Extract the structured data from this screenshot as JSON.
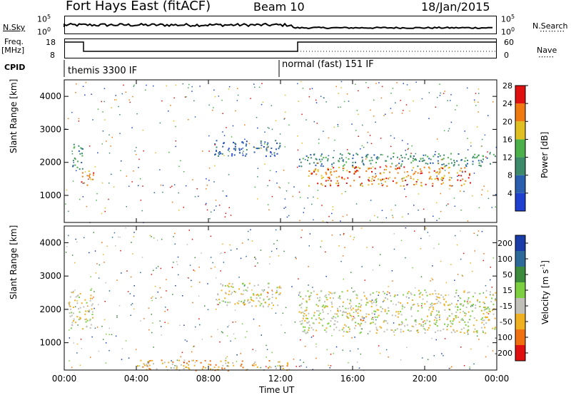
{
  "header": {
    "station": "Fort Hays East (fitACF)",
    "beam": "Beam 10",
    "date": "18/Jan/2015"
  },
  "top_panels": {
    "nsky_label": "N.Sky",
    "nsky_ticks": [
      "10^5",
      "10^0"
    ],
    "nsearch_label": "N.Search",
    "nsearch_ticks": [
      "10^5",
      "10^0"
    ],
    "freq_label": "Freq.",
    "freq_unit": "[MHz]",
    "freq_ticks": [
      "18",
      "8"
    ],
    "nave_label": "Nave",
    "nave_ticks": [
      "60",
      "0"
    ],
    "cpid_label": "CPID",
    "cpid_modes": [
      "themis 3300 IF",
      "normal (fast) 151 IF"
    ]
  },
  "chart_data": [
    {
      "type": "heatmap",
      "name": "power",
      "ylabel": "Slant Range [km]",
      "xlabel": "",
      "yticks": [
        1000,
        2000,
        3000,
        4000
      ],
      "ylim": [
        180,
        4500
      ],
      "xlim": [
        0,
        24
      ],
      "colorbar": {
        "label": "Power [dB]",
        "ticks": [
          "4",
          "8",
          "12",
          "16",
          "20",
          "24",
          "28"
        ],
        "colors": [
          "#1f3fd0",
          "#2a5fb0",
          "#3c8a6a",
          "#4cb04a",
          "#e0c020",
          "#f07a10",
          "#e01010"
        ]
      },
      "regions": [
        {
          "t0": 0.3,
          "t1": 1.0,
          "r0": 1800,
          "r1": 2600,
          "level": 2
        },
        {
          "t0": 0.9,
          "t1": 1.6,
          "r0": 1300,
          "r1": 1800,
          "level": 5
        },
        {
          "t0": 8.3,
          "t1": 12.0,
          "r0": 2200,
          "r1": 2700,
          "level": 1
        },
        {
          "t0": 13.0,
          "t1": 23.9,
          "r0": 1900,
          "r1": 2300,
          "level": 2
        },
        {
          "t0": 13.5,
          "t1": 22.5,
          "r0": 1300,
          "r1": 1900,
          "level": 5
        }
      ]
    },
    {
      "type": "heatmap",
      "name": "velocity",
      "ylabel": "Slant Range [km]",
      "xlabel": "Time UT",
      "yticks": [
        1000,
        2000,
        3000,
        4000
      ],
      "ylim": [
        180,
        4500
      ],
      "xlim": [
        0,
        24
      ],
      "xticks": [
        "00:00",
        "04:00",
        "08:00",
        "12:00",
        "16:00",
        "20:00",
        "00:00"
      ],
      "colorbar": {
        "label": "Velocity [m s^-1]",
        "ticks": [
          "200",
          "100",
          "50",
          "15",
          "-15",
          "-50",
          "-100",
          "-200"
        ],
        "colors": [
          "#1a3ca8",
          "#2d6a9a",
          "#3c8a3c",
          "#7cd040",
          "#c0c0b8",
          "#f0b020",
          "#f07010",
          "#e01010"
        ]
      },
      "regions": [
        {
          "t0": 0.2,
          "t1": 1.6,
          "r0": 1400,
          "r1": 2600,
          "level": 4
        },
        {
          "t0": 8.3,
          "t1": 12.0,
          "r0": 2100,
          "r1": 2800,
          "level": 4
        },
        {
          "t0": 13.0,
          "t1": 23.9,
          "r0": 1300,
          "r1": 2600,
          "level": 4
        },
        {
          "t0": 4.0,
          "t1": 12.5,
          "r0": 180,
          "r1": 500,
          "level": 5
        }
      ]
    }
  ]
}
